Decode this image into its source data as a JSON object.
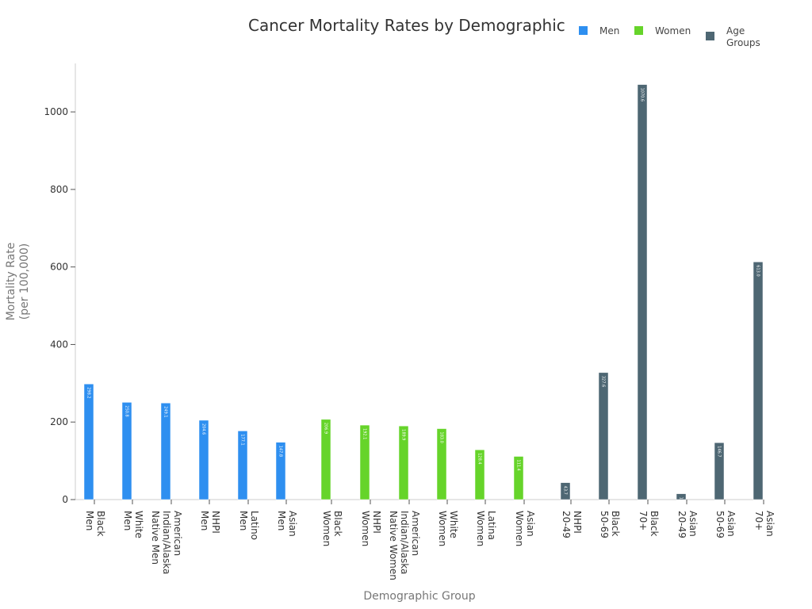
{
  "chart_data": {
    "type": "bar",
    "title": "Cancer Mortality Rates by Demographic",
    "xlabel": "Demographic Group",
    "ylabel": "Mortality Rate\n(per 100,000)",
    "ylim": [
      0,
      1125
    ],
    "yticks": [
      0,
      200,
      400,
      600,
      800,
      1000
    ],
    "legend_position": "top-right",
    "categories": [
      "Black Men",
      "White Men",
      "American Indian/Alaska Native Men",
      "NHPI Men",
      "Latino Men",
      "Asian Men",
      "Black Women",
      "NHPI Women",
      "American Indian/Alaska Native Women",
      "White Women",
      "Latina Women",
      "Asian Women",
      "NHPI 20-49",
      "Black 50-69",
      "Black 70+",
      "Asian 20-49",
      "Asian 50-69",
      "Asian 70+"
    ],
    "tick_labels": [
      [
        "Black",
        "Men"
      ],
      [
        "White",
        "Men"
      ],
      [
        "American",
        "Indian/Alaska",
        "Native Men"
      ],
      [
        "NHPI",
        "Men"
      ],
      [
        "Latino",
        "Men"
      ],
      [
        "Asian",
        "Men"
      ],
      [
        "Black",
        "Women"
      ],
      [
        "NHPI",
        "Women"
      ],
      [
        "American",
        "Indian/Alaska",
        "Native Women"
      ],
      [
        "White",
        "Women"
      ],
      [
        "Latina",
        "Women"
      ],
      [
        "Asian",
        "Women"
      ],
      [
        "NHPI",
        "20-49"
      ],
      [
        "Black",
        "50-69"
      ],
      [
        "Black",
        "70+"
      ],
      [
        "Asian",
        "20-49"
      ],
      [
        "Asian",
        "50-69"
      ],
      [
        "Asian",
        "70+"
      ]
    ],
    "series": [
      {
        "name": "Men",
        "color": "#2e8ff0",
        "values": [
          298.2,
          250.8,
          249.1,
          204.6,
          177.1,
          147.8,
          null,
          null,
          null,
          null,
          null,
          null,
          null,
          null,
          null,
          null,
          null,
          null
        ]
      },
      {
        "name": "Women",
        "color": "#66d42a",
        "values": [
          null,
          null,
          null,
          null,
          null,
          null,
          206.9,
          192.1,
          189.9,
          183.0,
          128.4,
          111.4,
          null,
          null,
          null,
          null,
          null,
          null
        ]
      },
      {
        "name": "Age Groups",
        "color": "#4e6773",
        "values": [
          null,
          null,
          null,
          null,
          null,
          null,
          null,
          null,
          null,
          null,
          null,
          null,
          43.7,
          327.6,
          1070.6,
          15.1,
          146.7,
          613.0
        ]
      }
    ]
  }
}
